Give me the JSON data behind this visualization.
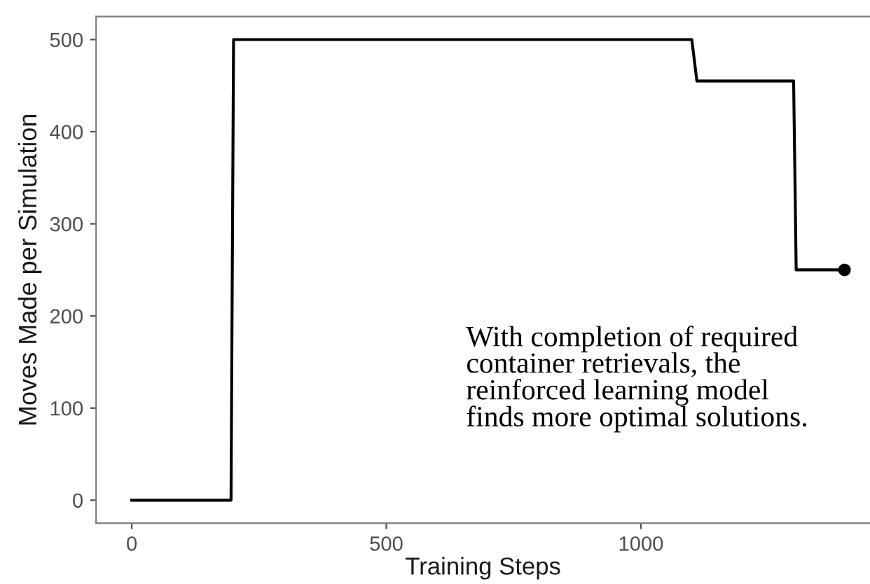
{
  "chart_data": {
    "type": "line",
    "xlabel": "Training Steps",
    "ylabel": "Moves Made per Simulation",
    "series": [
      {
        "color": "#000000",
        "x": [
          0,
          195,
          200,
          1100,
          1110,
          1300,
          1305,
          1400
        ],
        "values": [
          0,
          0,
          500,
          500,
          455,
          455,
          250,
          250
        ]
      },
      {
        "type": "scatter",
        "color": "#000000",
        "x": [
          1400
        ],
        "values": [
          250
        ]
      }
    ],
    "xlim": [
      -70,
      1450
    ],
    "xticks": [
      0,
      500,
      1000
    ],
    "ylim": [
      -25,
      525
    ],
    "yticks": [
      0,
      100,
      200,
      300,
      400,
      500
    ],
    "grid": false,
    "annotations": [
      "With completion of required\ncontainer retrievals, the\nreinforced learning model\nfinds more optimal solutions."
    ]
  }
}
